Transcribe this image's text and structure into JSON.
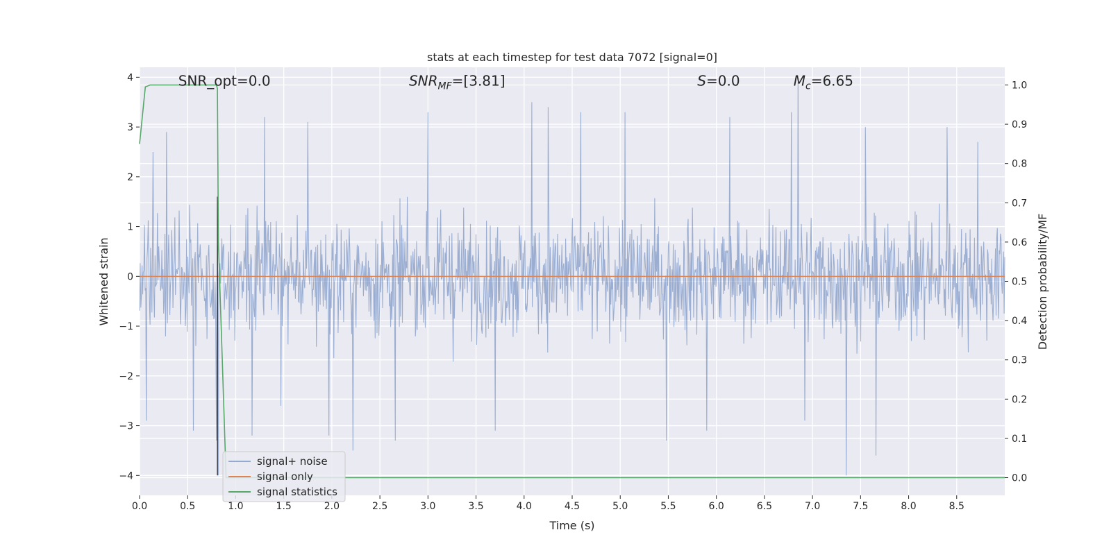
{
  "chart_data": {
    "type": "line",
    "title": "stats at each timestep for test data 7072 [signal=0]",
    "xlabel": "Time (s)",
    "ylabel": "Whitened strain",
    "y2label": "Detection probability/MF",
    "xlim": [
      0.0,
      9.0
    ],
    "ylim": [
      -4.4,
      4.2
    ],
    "y2lim": [
      -0.045,
      1.045
    ],
    "xticks": [
      "0.0",
      "0.5",
      "1.0",
      "1.5",
      "2.0",
      "2.5",
      "3.0",
      "3.5",
      "4.0",
      "4.5",
      "5.0",
      "5.5",
      "6.0",
      "6.5",
      "7.0",
      "7.5",
      "8.0",
      "8.5"
    ],
    "xtick_values": [
      0.0,
      0.5,
      1.0,
      1.5,
      2.0,
      2.5,
      3.0,
      3.5,
      4.0,
      4.5,
      5.0,
      5.5,
      6.0,
      6.5,
      7.0,
      7.5,
      8.0,
      8.5
    ],
    "yticks": [
      "−4",
      "−3",
      "−2",
      "−1",
      "0",
      "1",
      "2",
      "3",
      "4"
    ],
    "ytick_values": [
      -4,
      -3,
      -2,
      -1,
      0,
      1,
      2,
      3,
      4
    ],
    "y2ticks": [
      "0.0",
      "0.1",
      "0.2",
      "0.3",
      "0.4",
      "0.5",
      "0.6",
      "0.7",
      "0.8",
      "0.9",
      "1.0"
    ],
    "y2tick_values": [
      0.0,
      0.1,
      0.2,
      0.3,
      0.4,
      0.5,
      0.6,
      0.7,
      0.8,
      0.9,
      1.0
    ],
    "grid": true,
    "legend_position": "lower-left",
    "annotations": [
      {
        "text": "SNR_opt=0.0",
        "x": 0.2,
        "y": 3.9
      },
      {
        "text": "SNR_MF=[3.81]",
        "x": 2.6,
        "y": 3.9
      },
      {
        "text": "S=0.0",
        "x": 5.6,
        "y": 3.9
      },
      {
        "text": "M_c=6.65",
        "x": 6.6,
        "y": 3.9
      }
    ],
    "series": [
      {
        "name": "signal+ noise",
        "color": "#4c72b0",
        "axis": "left",
        "style": "dense noise, |amplitude| mostly within ±1.5, spikes to about ±3.5",
        "spikes": [
          [
            0.07,
            -2.9
          ],
          [
            0.14,
            2.5
          ],
          [
            0.28,
            2.9
          ],
          [
            0.56,
            -3.1
          ],
          [
            0.8,
            -3.3
          ],
          [
            0.82,
            -4.0
          ],
          [
            1.17,
            -3.2
          ],
          [
            1.3,
            3.2
          ],
          [
            1.47,
            -2.6
          ],
          [
            1.75,
            3.1
          ],
          [
            1.97,
            -3.2
          ],
          [
            2.22,
            -3.5
          ],
          [
            2.66,
            -3.3
          ],
          [
            3.0,
            3.3
          ],
          [
            3.7,
            -3.1
          ],
          [
            4.08,
            3.5
          ],
          [
            4.25,
            3.4
          ],
          [
            4.59,
            3.3
          ],
          [
            5.05,
            3.3
          ],
          [
            5.48,
            -3.3
          ],
          [
            5.9,
            -3.1
          ],
          [
            6.14,
            3.2
          ],
          [
            6.78,
            3.3
          ],
          [
            6.85,
            3.9
          ],
          [
            6.92,
            -2.9
          ],
          [
            7.35,
            -4.0
          ],
          [
            7.55,
            3.0
          ],
          [
            7.66,
            -3.6
          ],
          [
            8.4,
            3.0
          ],
          [
            8.72,
            2.7
          ]
        ]
      },
      {
        "name": "signal only",
        "color": "#dd8452",
        "axis": "left",
        "x": [
          0.0,
          9.0
        ],
        "y": [
          0.0,
          0.0
        ]
      },
      {
        "name": "signal statistics",
        "color": "#55a868",
        "axis": "right",
        "x": [
          0.0,
          0.06,
          0.11,
          0.25,
          0.5,
          0.75,
          0.8,
          0.81,
          0.82,
          0.86,
          0.9,
          9.0
        ],
        "y": [
          0.85,
          0.995,
          1.0,
          1.0,
          1.0,
          1.0,
          1.0,
          0.99,
          0.6,
          0.3,
          0.0,
          0.0
        ]
      }
    ],
    "marker_line": {
      "x": 0.81,
      "color": "#222222"
    }
  }
}
